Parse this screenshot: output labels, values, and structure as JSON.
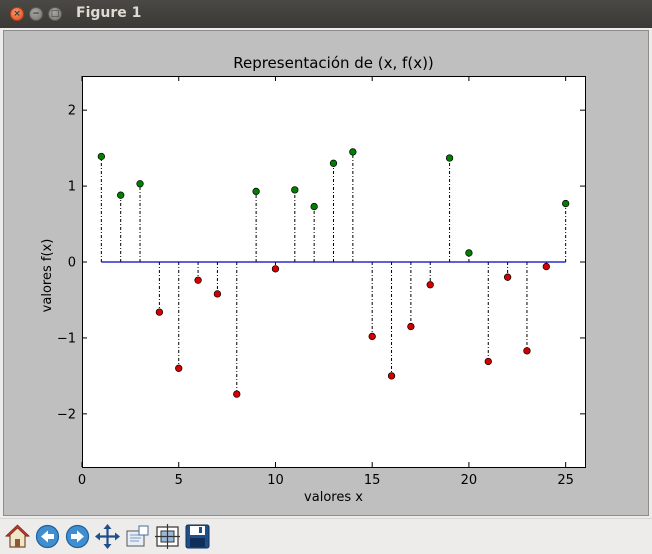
{
  "window": {
    "title": "Figure 1",
    "close_glyph": "×",
    "minimize_glyph": "−",
    "maximize_glyph": "□"
  },
  "colors": {
    "positive_point": "#007f00",
    "negative_point": "#d40000",
    "baseline": "#0000bf",
    "figure_bg": "#bfbfbf",
    "axes_bg": "#ffffff"
  },
  "toolbar": [
    {
      "name": "home-icon"
    },
    {
      "name": "back-arrow-icon"
    },
    {
      "name": "forward-arrow-icon"
    },
    {
      "name": "pan-move-icon"
    },
    {
      "name": "zoom-rect-icon"
    },
    {
      "name": "subplots-config-icon"
    },
    {
      "name": "save-floppy-icon"
    }
  ],
  "chart_data": {
    "type": "scatter",
    "title": "Representación de (x, f(x))",
    "xlabel": "valores x",
    "ylabel": "valores f(x)",
    "xlim": [
      0,
      26
    ],
    "ylim": [
      -2.7,
      2.45
    ],
    "xticks": [
      0,
      5,
      10,
      15,
      20,
      25
    ],
    "xtick_labels": [
      "0",
      "5",
      "10",
      "15",
      "20",
      "25"
    ],
    "yticks": [
      2,
      1,
      0,
      -1,
      -2
    ],
    "ytick_labels": [
      "2",
      "1",
      "0",
      "−1",
      "−2"
    ],
    "grid": false,
    "baseline": {
      "y": 0,
      "x_from": 1,
      "x_to": 25
    },
    "stems": "dash-dot black lines from 0 to each point",
    "x": [
      1,
      2,
      3,
      4,
      5,
      6,
      7,
      8,
      9,
      10,
      11,
      12,
      13,
      14,
      15,
      16,
      17,
      18,
      19,
      20,
      21,
      22,
      23,
      24,
      25
    ],
    "y": [
      1.39,
      0.88,
      1.03,
      -0.66,
      -1.4,
      -0.24,
      -0.42,
      -1.74,
      0.93,
      -0.09,
      0.95,
      0.73,
      1.3,
      1.45,
      -0.98,
      -1.5,
      -0.85,
      -0.3,
      1.37,
      0.12,
      -1.31,
      -0.2,
      -1.17,
      -0.06,
      0.77
    ]
  }
}
